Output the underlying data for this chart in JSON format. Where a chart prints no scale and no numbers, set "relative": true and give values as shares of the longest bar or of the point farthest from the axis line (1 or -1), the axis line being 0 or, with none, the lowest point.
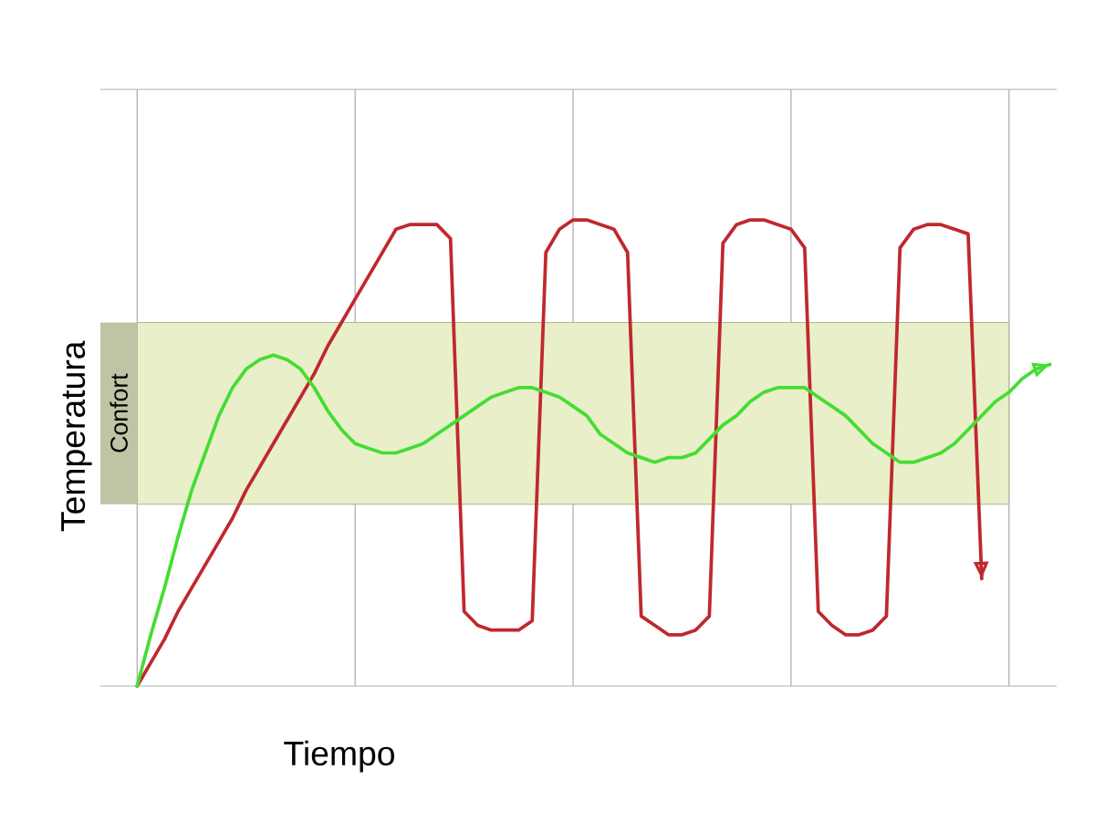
{
  "chart_data": {
    "type": "line",
    "xlabel": "Tiempo",
    "ylabel": "Temperatura",
    "relative": true,
    "categories": [
      null,
      null,
      null,
      null,
      null,
      null,
      null,
      null,
      null,
      null,
      null,
      null,
      null,
      null,
      null,
      null,
      null,
      null,
      null,
      null,
      null,
      null,
      null,
      null,
      null,
      null,
      null,
      null,
      null,
      null,
      null,
      null,
      null,
      null,
      null,
      null,
      null,
      null,
      null,
      null,
      null,
      null,
      null,
      null,
      null,
      null,
      null,
      null,
      null,
      null,
      null,
      null,
      null,
      null,
      null,
      null,
      null,
      null,
      null,
      null,
      null,
      null,
      null,
      null,
      null,
      null,
      null,
      null
    ],
    "grid": "x",
    "tick_labels": false,
    "marker": "none",
    "line_style": "solid",
    "bands": [
      {
        "axis": "y",
        "from": 0.39,
        "to": 0.78,
        "label": "Confort",
        "color": "#e9efc9"
      }
    ],
    "series": [
      {
        "color": "#c0282d",
        "values": [
          0,
          0.05,
          0.1,
          0.16,
          0.21,
          0.26,
          0.31,
          0.36,
          0.42,
          0.47,
          0.52,
          0.57,
          0.62,
          0.67,
          0.73,
          0.78,
          0.83,
          0.88,
          0.93,
          0.98,
          0.99,
          0.99,
          0.99,
          0.96,
          0.16,
          0.13,
          0.12,
          0.12,
          0.12,
          0.14,
          0.93,
          0.98,
          1.0,
          1.0,
          0.99,
          0.98,
          0.93,
          0.15,
          0.13,
          0.11,
          0.11,
          0.12,
          0.15,
          0.95,
          0.99,
          1.0,
          1.0,
          0.99,
          0.98,
          0.94,
          0.16,
          0.13,
          0.11,
          0.11,
          0.12,
          0.15,
          0.94,
          0.98,
          0.99,
          0.99,
          0.98,
          0.97,
          0.23,
          null,
          null,
          null,
          null,
          null
        ]
      },
      {
        "color": "#44dd33",
        "values": [
          0,
          0.11,
          0.21,
          0.32,
          0.42,
          0.5,
          0.58,
          0.64,
          0.68,
          0.7,
          0.71,
          0.7,
          0.68,
          0.64,
          0.59,
          0.55,
          0.52,
          0.51,
          0.5,
          0.5,
          0.51,
          0.52,
          0.54,
          0.56,
          0.58,
          0.6,
          0.62,
          0.63,
          0.64,
          0.64,
          0.63,
          0.62,
          0.6,
          0.58,
          0.54,
          0.52,
          0.5,
          0.49,
          0.48,
          0.49,
          0.49,
          0.5,
          0.53,
          0.56,
          0.58,
          0.61,
          0.63,
          0.64,
          0.64,
          0.64,
          0.62,
          0.6,
          0.58,
          0.55,
          0.52,
          0.5,
          0.48,
          0.48,
          0.49,
          0.5,
          0.52,
          0.55,
          0.58,
          0.61,
          0.63,
          0.66,
          0.68,
          0.69
        ]
      }
    ]
  }
}
